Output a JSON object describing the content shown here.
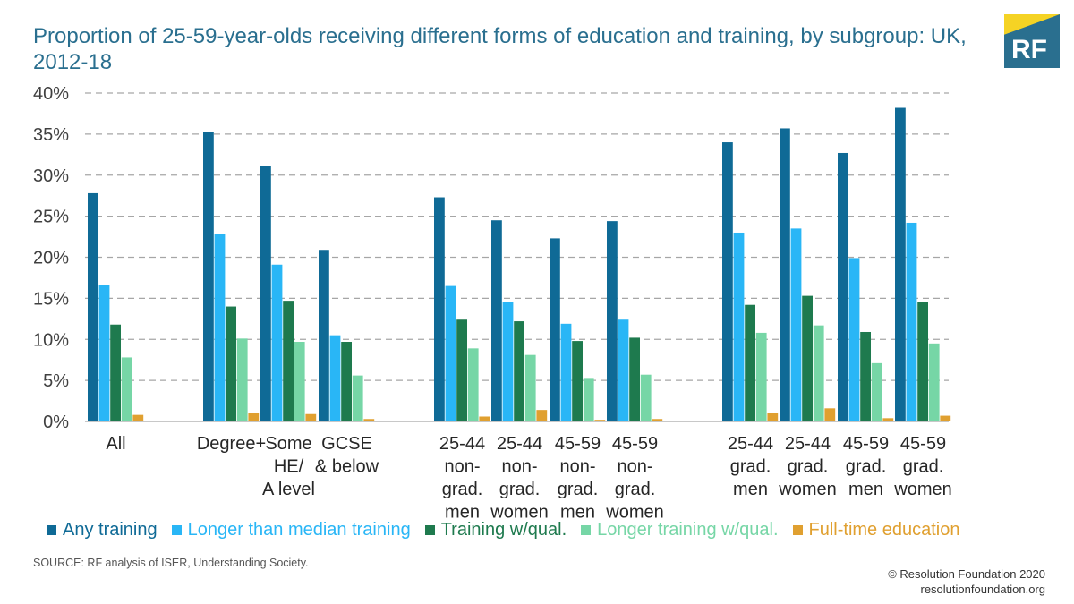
{
  "title": "Proportion of 25-59-year-olds receiving different forms of education and training, by subgroup: UK, 2012-18",
  "logo_text": "RF",
  "source": "SOURCE: RF analysis of ISER, Understanding Society.",
  "copyright": "© Resolution Foundation 2020",
  "website": "resolutionfoundation.org",
  "colors": {
    "brand": "#2a6f8f",
    "logo_accent": "#f5d324",
    "gridline": "#a6a6a6"
  },
  "chart_data": {
    "type": "bar",
    "ylim": [
      0,
      40
    ],
    "yticks": [
      0,
      5,
      10,
      15,
      20,
      25,
      30,
      35,
      40
    ],
    "ytick_labels": [
      "0%",
      "5%",
      "10%",
      "15%",
      "20%",
      "25%",
      "30%",
      "35%",
      "40%"
    ],
    "grid": true,
    "legend_position": "bottom",
    "categories": [
      [
        "All"
      ],
      [
        "Degree+"
      ],
      [
        "Some",
        "HE/",
        "A level"
      ],
      [
        "GCSE",
        "& below"
      ],
      [
        "25-44",
        "non-",
        "grad.",
        "men"
      ],
      [
        "25-44",
        "non-",
        "grad.",
        "women"
      ],
      [
        "45-59",
        "non-",
        "grad.",
        "men"
      ],
      [
        "45-59",
        "non-",
        "grad.",
        "women"
      ],
      [
        "25-44",
        "grad.",
        "men"
      ],
      [
        "25-44",
        "grad.",
        "women"
      ],
      [
        "45-59",
        "grad.",
        "men"
      ],
      [
        "45-59",
        "grad.",
        "women"
      ]
    ],
    "series": [
      {
        "name": "Any training",
        "color": "#0f6a96",
        "values": [
          27.8,
          35.3,
          31.1,
          20.9,
          27.3,
          24.5,
          22.3,
          24.4,
          34.0,
          35.7,
          32.7,
          38.2
        ]
      },
      {
        "name": "Longer than median training",
        "color": "#29b6f6",
        "values": [
          16.6,
          22.8,
          19.1,
          10.5,
          16.5,
          14.6,
          11.9,
          12.4,
          23.0,
          23.5,
          19.9,
          24.2
        ]
      },
      {
        "name": "Training w/qual.",
        "color": "#1e7a4e",
        "values": [
          11.8,
          14.0,
          14.7,
          9.7,
          12.4,
          12.2,
          9.8,
          10.2,
          14.2,
          15.3,
          10.9,
          14.6
        ]
      },
      {
        "name": "Longer training w/qual.",
        "color": "#76d6a6",
        "values": [
          7.8,
          10.1,
          9.7,
          5.6,
          8.9,
          8.1,
          5.3,
          5.7,
          10.8,
          11.7,
          7.1,
          9.5
        ]
      },
      {
        "name": "Full-time education",
        "color": "#e0a030",
        "values": [
          0.8,
          1.0,
          0.9,
          0.3,
          0.6,
          1.4,
          0.2,
          0.3,
          1.0,
          1.6,
          0.4,
          0.7
        ]
      }
    ]
  }
}
